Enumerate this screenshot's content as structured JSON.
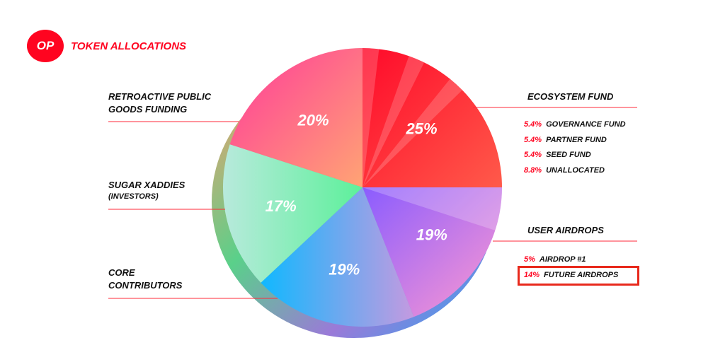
{
  "header": {
    "logo_text": "OP",
    "title": "TOKEN ALLOCATIONS"
  },
  "chart_data": {
    "type": "pie",
    "title": "TOKEN ALLOCATIONS",
    "slices": [
      {
        "name": "ECOSYSTEM FUND",
        "value": 25,
        "label": "25%"
      },
      {
        "name": "USER AIRDROPS",
        "value": 19,
        "label": "19%"
      },
      {
        "name": "CORE CONTRIBUTORS",
        "value": 19,
        "label": "19%"
      },
      {
        "name": "SUGAR XADDIES (INVESTORS)",
        "value": 17,
        "label": "17%"
      },
      {
        "name": "RETROACTIVE PUBLIC GOODS FUNDING",
        "value": 20,
        "label": "20%"
      }
    ],
    "ecosystem_breakdown": [
      {
        "pct": "5.4%",
        "name": "GOVERNANCE FUND"
      },
      {
        "pct": "5.4%",
        "name": "PARTNER FUND"
      },
      {
        "pct": "5.4%",
        "name": "SEED FUND"
      },
      {
        "pct": "8.8%",
        "name": "UNALLOCATED"
      }
    ],
    "airdrop_breakdown": [
      {
        "pct": "5%",
        "name": "AIRDROP #1"
      },
      {
        "pct": "14%",
        "name": "FUTURE AIRDROPS"
      }
    ]
  },
  "labels": {
    "retro_line1": "RETROACTIVE PUBLIC",
    "retro_line2": "GOODS FUNDING",
    "sugar_line1": "SUGAR XADDIES",
    "sugar_note": "(INVESTORS)",
    "core_line1": "CORE",
    "core_line2": "CONTRIBUTORS",
    "eco": "ECOSYSTEM FUND",
    "user": "USER AIRDROPS"
  },
  "colors": {
    "brand": "#ff0420",
    "highlight_box": "#e8291c"
  }
}
